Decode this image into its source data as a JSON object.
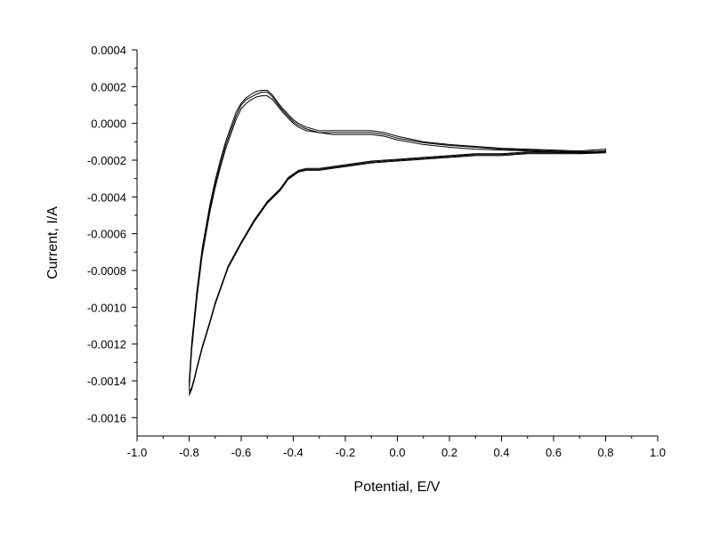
{
  "chart_data": {
    "type": "line",
    "xlabel": "Potential, E/V",
    "ylabel": "Current, I/A",
    "xlim": [
      -1.0,
      1.0
    ],
    "ylim": [
      -0.0017,
      0.0004
    ],
    "x_ticks": [
      -1.0,
      -0.8,
      -0.6,
      -0.4,
      -0.2,
      0.0,
      0.2,
      0.4,
      0.6,
      0.8,
      1.0
    ],
    "x_tick_labels": [
      "-1.0",
      "-0.8",
      "-0.6",
      "-0.4",
      "-0.2",
      "0.0",
      "0.2",
      "0.4",
      "0.6",
      "0.8",
      "1.0"
    ],
    "y_ticks": [
      0.0004,
      0.0002,
      0.0,
      -0.0002,
      -0.0004,
      -0.0006,
      -0.0008,
      -0.001,
      -0.0012,
      -0.0014,
      -0.0016
    ],
    "y_tick_labels": [
      "0.0004",
      "0.0002",
      "0.0000",
      "-0.0002",
      "-0.0004",
      "-0.0006",
      "-0.0008",
      "-0.0010",
      "-0.0012",
      "-0.0014",
      "-0.0016"
    ],
    "grid": false,
    "series": [
      {
        "x": [
          -0.8,
          -0.79,
          -0.77,
          -0.75,
          -0.72,
          -0.7,
          -0.68,
          -0.66,
          -0.64,
          -0.62,
          -0.6,
          -0.58,
          -0.56,
          -0.54,
          -0.52,
          -0.5,
          -0.48,
          -0.46,
          -0.44,
          -0.42,
          -0.4,
          -0.38,
          -0.35,
          -0.3,
          -0.25,
          -0.2,
          -0.15,
          -0.1,
          -0.05,
          0.0,
          0.1,
          0.2,
          0.3,
          0.4,
          0.5,
          0.6,
          0.7,
          0.8,
          0.8,
          0.7,
          0.6,
          0.5,
          0.4,
          0.3,
          0.2,
          0.1,
          0.0,
          -0.1,
          -0.2,
          -0.25,
          -0.3,
          -0.35,
          -0.38,
          -0.4,
          -0.42,
          -0.45,
          -0.5,
          -0.55,
          -0.6,
          -0.65,
          -0.68,
          -0.7,
          -0.72,
          -0.75,
          -0.77,
          -0.78,
          -0.79,
          -0.8
        ],
        "y": [
          -0.00143,
          -0.00121,
          -0.00093,
          -0.0007,
          -0.00046,
          -0.00033,
          -0.00022,
          -0.00012,
          -4e-05,
          4e-05,
          0.0001,
          0.00013,
          0.000145,
          0.00016,
          0.00017,
          0.00017,
          0.000145,
          0.000105,
          7e-05,
          4e-05,
          1e-05,
          -1e-05,
          -3e-05,
          -5e-05,
          -5e-05,
          -5e-05,
          -5e-05,
          -5e-05,
          -6e-05,
          -8e-05,
          -0.000105,
          -0.00012,
          -0.00013,
          -0.00014,
          -0.000145,
          -0.00015,
          -0.000155,
          -0.00015,
          -0.000155,
          -0.00016,
          -0.00016,
          -0.00016,
          -0.00017,
          -0.00017,
          -0.00018,
          -0.00019,
          -0.0002,
          -0.00021,
          -0.00023,
          -0.00024,
          -0.00025,
          -0.00025,
          -0.00026,
          -0.00028,
          -0.0003,
          -0.00036,
          -0.00043,
          -0.00053,
          -0.00065,
          -0.00078,
          -0.0009,
          -0.00098,
          -0.00108,
          -0.00122,
          -0.00133,
          -0.00139,
          -0.00144,
          -0.00147
        ]
      },
      {
        "x": [
          -0.8,
          -0.79,
          -0.77,
          -0.75,
          -0.72,
          -0.7,
          -0.68,
          -0.66,
          -0.64,
          -0.62,
          -0.6,
          -0.58,
          -0.56,
          -0.54,
          -0.52,
          -0.5,
          -0.48,
          -0.46,
          -0.44,
          -0.42,
          -0.4,
          -0.38,
          -0.35,
          -0.3,
          -0.25,
          -0.2,
          -0.15,
          -0.1,
          -0.05,
          0.0,
          0.1,
          0.2,
          0.3,
          0.4,
          0.5,
          0.6,
          0.7,
          0.8,
          0.8,
          0.7,
          0.6,
          0.5,
          0.4,
          0.3,
          0.2,
          0.1,
          0.0,
          -0.1,
          -0.2,
          -0.25,
          -0.3,
          -0.35,
          -0.38,
          -0.4,
          -0.42,
          -0.45,
          -0.5,
          -0.55,
          -0.6,
          -0.65,
          -0.68,
          -0.7,
          -0.72,
          -0.75,
          -0.77,
          -0.78,
          -0.79,
          -0.8
        ],
        "y": [
          -0.00145,
          -0.00123,
          -0.00095,
          -0.00072,
          -0.00048,
          -0.00035,
          -0.00024,
          -0.00014,
          -6e-05,
          2e-05,
          8e-05,
          0.00011,
          0.00013,
          0.000145,
          0.00015,
          0.00015,
          0.00013,
          9.5e-05,
          6e-05,
          3e-05,
          0.0,
          -2e-05,
          -4e-05,
          -5e-05,
          -6e-05,
          -6e-05,
          -6e-05,
          -6e-05,
          -7e-05,
          -9e-05,
          -0.000115,
          -0.00013,
          -0.00014,
          -0.000145,
          -0.00015,
          -0.000155,
          -0.00016,
          -0.00016,
          -0.00016,
          -0.000165,
          -0.000165,
          -0.000165,
          -0.000175,
          -0.000175,
          -0.000185,
          -0.000195,
          -0.000205,
          -0.000215,
          -0.000235,
          -0.000245,
          -0.000255,
          -0.000255,
          -0.000265,
          -0.000285,
          -0.000305,
          -0.000365,
          -0.000435,
          -0.000535,
          -0.000655,
          -0.000785,
          -0.000905,
          -0.000985,
          -0.001085,
          -0.001225,
          -0.001335,
          -0.001395,
          -0.001445,
          -0.00148
        ]
      },
      {
        "x": [
          -0.8,
          -0.79,
          -0.77,
          -0.75,
          -0.72,
          -0.7,
          -0.68,
          -0.66,
          -0.64,
          -0.62,
          -0.6,
          -0.58,
          -0.56,
          -0.54,
          -0.52,
          -0.5,
          -0.48,
          -0.46,
          -0.44,
          -0.42,
          -0.4,
          -0.38,
          -0.35,
          -0.3,
          -0.25,
          -0.2,
          -0.15,
          -0.1,
          -0.05,
          0.0,
          0.1,
          0.2,
          0.3,
          0.4,
          0.5,
          0.6,
          0.7,
          0.8,
          0.8,
          0.7,
          0.6,
          0.5,
          0.4,
          0.3,
          0.2,
          0.1,
          0.0,
          -0.1,
          -0.2,
          -0.25,
          -0.3,
          -0.35,
          -0.38,
          -0.4,
          -0.42,
          -0.45,
          -0.5,
          -0.55,
          -0.6,
          -0.65,
          -0.68,
          -0.7,
          -0.72,
          -0.75,
          -0.77,
          -0.78,
          -0.79,
          -0.8
        ],
        "y": [
          -0.00141,
          -0.00119,
          -0.00091,
          -0.00068,
          -0.00044,
          -0.00031,
          -0.0002,
          -0.0001,
          -2e-05,
          6e-05,
          0.00011,
          0.00014,
          0.00016,
          0.000175,
          0.00018,
          0.00018,
          0.000155,
          0.000115,
          8e-05,
          5e-05,
          2e-05,
          0.0,
          -2e-05,
          -4e-05,
          -4e-05,
          -4e-05,
          -4e-05,
          -4e-05,
          -5e-05,
          -7e-05,
          -0.0001,
          -0.000115,
          -0.000125,
          -0.000135,
          -0.00014,
          -0.000145,
          -0.00015,
          -0.00014,
          -0.00015,
          -0.000155,
          -0.000155,
          -0.000155,
          -0.000165,
          -0.000165,
          -0.000175,
          -0.000185,
          -0.000195,
          -0.000205,
          -0.000225,
          -0.000235,
          -0.000245,
          -0.000245,
          -0.000255,
          -0.000275,
          -0.000295,
          -0.000355,
          -0.000425,
          -0.000525,
          -0.000645,
          -0.000775,
          -0.000895,
          -0.000975,
          -0.001075,
          -0.001215,
          -0.001325,
          -0.001385,
          -0.001435,
          -0.00146
        ]
      }
    ]
  }
}
